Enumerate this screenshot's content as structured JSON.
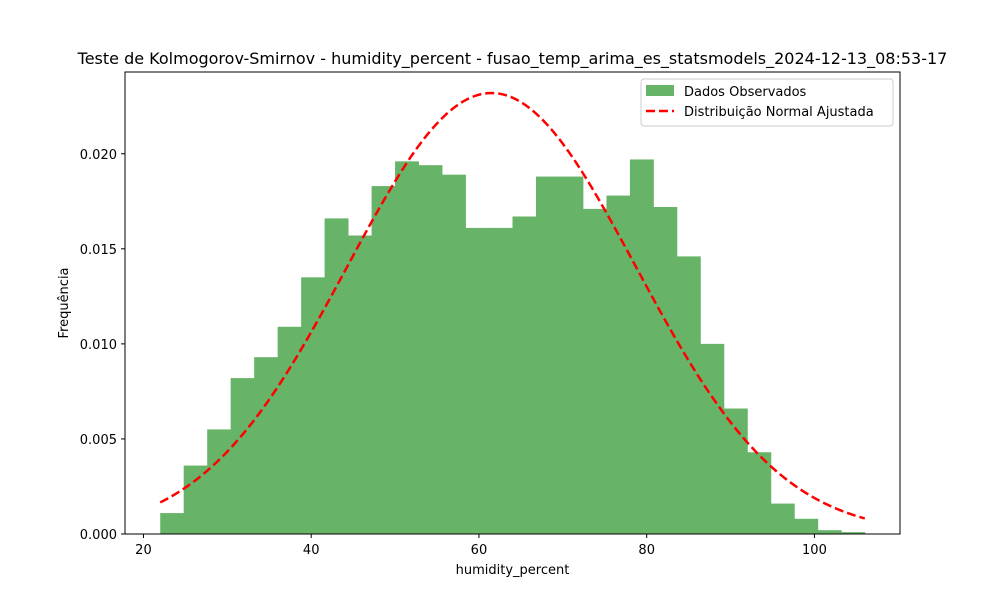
{
  "chart_data": {
    "type": "bar",
    "title": "Teste de Kolmogorov-Smirnov - humidity_percent - fusao_temp_arima_es_statsmodels_2024-12-13_08:53-17",
    "xlabel": "humidity_percent",
    "ylabel": "Frequência",
    "xlim": [
      17.8,
      110.2
    ],
    "ylim": [
      0,
      0.0243
    ],
    "x_ticks": [
      20,
      40,
      60,
      80,
      100
    ],
    "x_tick_labels": [
      "20",
      "40",
      "60",
      "80",
      "100"
    ],
    "y_ticks": [
      0,
      0.005,
      0.01,
      0.015,
      0.02
    ],
    "y_tick_labels": [
      "0.000",
      "0.005",
      "0.010",
      "0.015",
      "0.020"
    ],
    "grid": false,
    "legend_position": "top-right",
    "histogram": {
      "name": "Dados Observados",
      "color": "#67b367",
      "bin_edges": [
        22.0,
        24.8,
        27.6,
        30.4,
        33.2,
        36.0,
        38.8,
        41.6,
        44.4,
        47.2,
        50.0,
        52.8,
        55.6,
        58.4,
        61.2,
        64.0,
        66.8,
        69.6,
        72.4,
        75.2,
        78.0,
        80.8,
        83.6,
        86.4,
        89.2,
        92.0,
        94.8,
        97.6,
        100.4,
        103.2,
        106.0
      ],
      "values": [
        0.0011,
        0.0036,
        0.0055,
        0.0082,
        0.0093,
        0.0109,
        0.0135,
        0.0166,
        0.0157,
        0.0183,
        0.0196,
        0.0194,
        0.0189,
        0.0161,
        0.0161,
        0.0167,
        0.0188,
        0.0188,
        0.0171,
        0.0178,
        0.0197,
        0.0172,
        0.0146,
        0.01,
        0.0066,
        0.0043,
        0.0016,
        0.0008,
        0.0002,
        0.0001
      ]
    },
    "fit_curve": {
      "name": "Distribuição Normal Ajustada",
      "color": "#ff0000",
      "style": "dashed",
      "mean": 61.5,
      "std": 17.2,
      "x_range": [
        22.0,
        106.0
      ]
    }
  }
}
